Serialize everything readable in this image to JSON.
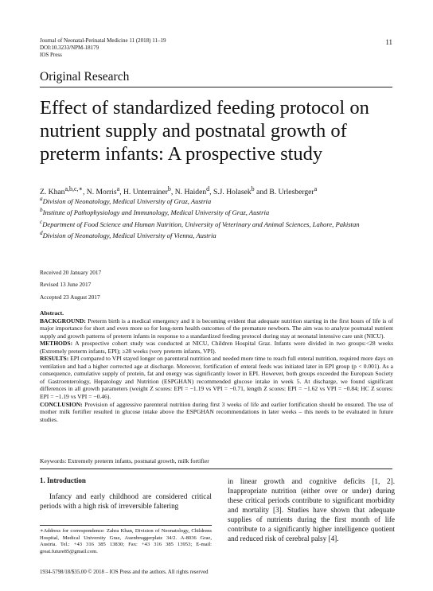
{
  "header": {
    "journal_line": "Journal of Neonatal-Perinatal Medicine 11 (2018) 11–19",
    "doi_line": "DOI:10.3233/NPM-18179",
    "publisher_line": "IOS Press",
    "page_number": "11"
  },
  "section_label": "Original Research",
  "title": "Effect of standardized feeding protocol on nutrient supply and postnatal growth of preterm infants: A prospective study",
  "authors": [
    {
      "name": "Z. Khan",
      "sup": "a,b,c,∗",
      "sep": ", "
    },
    {
      "name": "N. Morris",
      "sup": "a",
      "sep": ", "
    },
    {
      "name": "H. Unterrainer",
      "sup": "b",
      "sep": ", "
    },
    {
      "name": "N. Haiden",
      "sup": "d",
      "sep": ", "
    },
    {
      "name": "S.J. Holasek",
      "sup": "b",
      "sep": " and "
    },
    {
      "name": "B. Urlesberger",
      "sup": "a",
      "sep": ""
    }
  ],
  "affiliations": [
    {
      "key": "a",
      "text": "Division of Neonatology, Medical University of Graz, Austria"
    },
    {
      "key": "b",
      "text": "Institute of Pathophysiology and Immunology, Medical University of Graz, Austria"
    },
    {
      "key": "c",
      "text": "Department of Food Science and Human Nutrition, University of Veterinary and Animal Sciences, Lahore, Pakistan"
    },
    {
      "key": "d",
      "text": "Division of Neonatology, Medical University of Vienna, Austria"
    }
  ],
  "dates": {
    "received": "Received 20 January 2017",
    "revised": "Revised 13 June 2017",
    "accepted": "Accepted 23 August 2017"
  },
  "abstract": {
    "heading": "Abstract.",
    "background_label": "BACKGROUND:",
    "background": " Preterm birth is a medical emergency and it is becoming evident that adequate nutrition starting in the first hours of life is of major importance for short and even more so for long-term health outcomes of the premature newborn. The aim was to analyze postnatal nutrient supply and growth patterns of preterm infants in response to a standardized feeding protocol during stay at neonatal intensive care unit (NICU).",
    "methods_label": "METHODS:",
    "methods": " A prospective cohort study was conducted at NICU, Children Hospital Graz. Infants were divided in two groups:<28 weeks (Extremely preterm infants, EPI); ≥28 weeks (very preterm infants, VPI).",
    "results_label": "RESULTS:",
    "results": " EPI compared to VPI stayed longer on parenteral nutrition and needed more time to reach full enteral nutrition, required more days on ventilation and had a higher corrected age at discharge. Moreover, fortification of enteral feeds was initiated later in EPI group (p < 0.001). As a consequence, cumulative supply of protein, fat and energy was significantly lower in EPI. However, both groups exceeded the European Society of Gastroenterology, Hepatology and Nutrition (ESPGHAN) recommended glucose intake in week 5. At discharge, we found significant differences in all growth parameters (weight Z scores: EPI = −1.19 vs VPI = −0.71, length Z scores: EPI = −1.62 vs VPI = −0.84; HC Z scores: EPI = −1.19 vs VPI = −0.46).",
    "conclusion_label": "CONCLUSION:",
    "conclusion": " Provision of aggressive parenteral nutrition during first 3 weeks of life and earlier fortification should be ensured. The use of mother milk fortifier resulted in glucose intake above the ESPGHAN recommendations in later weeks – this needs to be evaluated in future studies."
  },
  "keywords": "Keywords: Extremely preterm infants, postnatal growth, milk fortifier",
  "intro": {
    "heading": "1.  Introduction",
    "left_text": "Infancy and early childhood are considered critical periods with a high risk of irreversible faltering",
    "right_text": "in linear growth and cognitive deficits [1, 2]. Inappropriate nutrition (either over or under) during these critical periods contribute to significant morbidity and mortality [3]. Studies have shown that adequate supplies of nutrients during the first month of life contribute to a significantly higher intelligence quotient and reduced risk of cerebral palsy [4]."
  },
  "footnote": "∗Address for correspondence: Zahra Khan, Division of Neonatology, Childrens Hospital, Medical University Graz, Auenbruggerplatz 34/2. A-8036 Graz, Austria. Tel.: +43 316 385 13830; Fax: +43 316 385 13953; E-mail: great.future85@gmail.com.",
  "footer": "1934-5798/18/$35.00 © 2018 – IOS Press and the authors. All rights reserved"
}
